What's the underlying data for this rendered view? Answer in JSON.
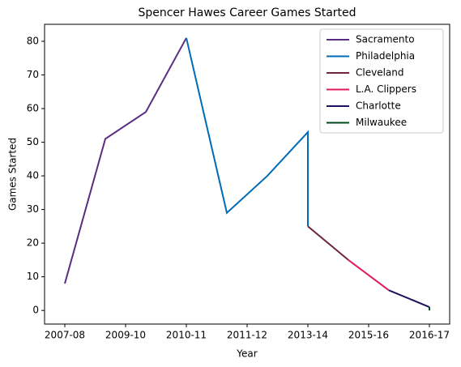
{
  "chart_data": {
    "type": "line",
    "title": "Spencer Hawes Career Games Started",
    "xlabel": "Year",
    "ylabel": "Games Started",
    "xlim": [
      -0.5,
      9.5
    ],
    "xticks": [
      {
        "value": 0,
        "label": "2007-08"
      },
      {
        "value": 1.5,
        "label": "2009-10"
      },
      {
        "value": 3,
        "label": "2010-11"
      },
      {
        "value": 4.5,
        "label": "2011-12"
      },
      {
        "value": 6,
        "label": "2013-14"
      },
      {
        "value": 7.5,
        "label": "2015-16"
      },
      {
        "value": 9,
        "label": "2016-17"
      }
    ],
    "ylim": [
      -4.05,
      85.05
    ],
    "yticks": [
      0,
      10,
      20,
      30,
      40,
      50,
      60,
      70,
      80
    ],
    "legend": "upper right",
    "series": [
      {
        "name": "Sacramento",
        "color": "#5a2d81",
        "x": [
          0,
          1,
          2,
          3
        ],
        "values": [
          8,
          51,
          59,
          81
        ]
      },
      {
        "name": "Philadelphia",
        "color": "#006bb6",
        "x": [
          3,
          4,
          5,
          6,
          6
        ],
        "values": [
          81,
          29,
          40,
          53,
          25
        ]
      },
      {
        "name": "Cleveland",
        "color": "#6f263d",
        "x": [
          6,
          7
        ],
        "values": [
          25,
          15
        ]
      },
      {
        "name": "L.A. Clippers",
        "color": "#e31b5a",
        "x": [
          7,
          8
        ],
        "values": [
          15,
          6
        ]
      },
      {
        "name": "Charlotte",
        "color": "#1d1160",
        "x": [
          8,
          9
        ],
        "values": [
          6,
          1
        ]
      },
      {
        "name": "Milwaukee",
        "color": "#00471b",
        "x": [
          9,
          9
        ],
        "values": [
          1,
          0
        ]
      }
    ]
  }
}
